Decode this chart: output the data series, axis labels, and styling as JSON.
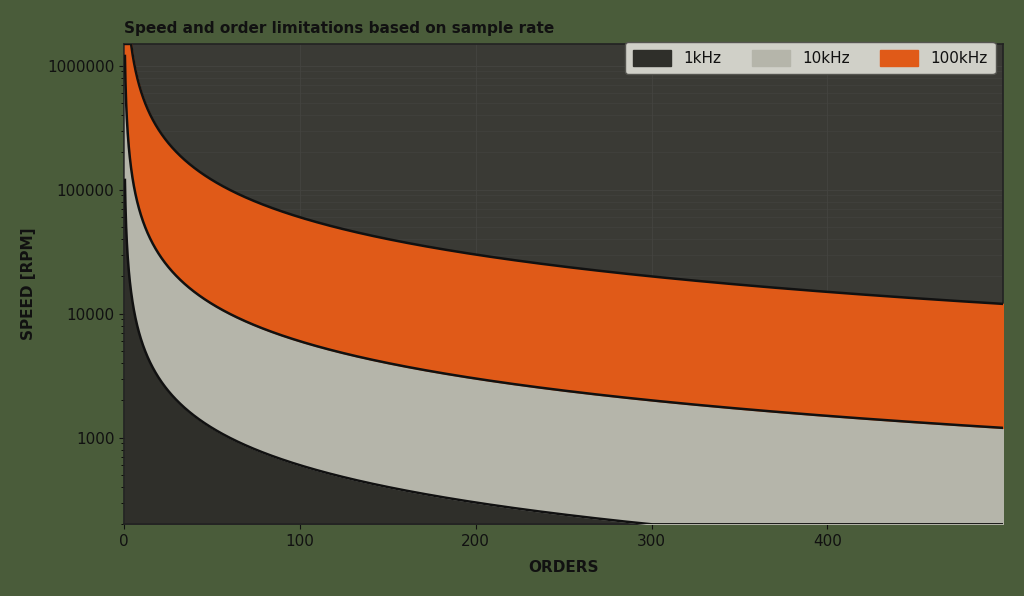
{
  "title": "Speed and order limitations based on sample rate",
  "xlabel": "ORDERS",
  "ylabel": "SPEED [RPM]",
  "title_fontsize": 11,
  "label_fontsize": 11,
  "figure_bg": "#4a5c3a",
  "plot_bg": "#3a3a35",
  "fs_1khz": 1000,
  "fs_10khz": 10000,
  "fs_100khz": 100000,
  "x_min": 0,
  "x_max": 500,
  "y_min": 200,
  "y_max": 1500000,
  "color_1khz": "#2f2f2a",
  "color_10khz": "#b5b5aa",
  "color_100khz": "#e05a18",
  "grid_color": "#444440",
  "legend_labels": [
    "1kHz",
    "10kHz",
    "100kHz"
  ],
  "xticks": [
    0,
    100,
    200,
    300,
    400
  ],
  "line_color": "#111111",
  "line_width": 1.8,
  "tick_label_color": "#111111",
  "axis_label_color": "#111111"
}
